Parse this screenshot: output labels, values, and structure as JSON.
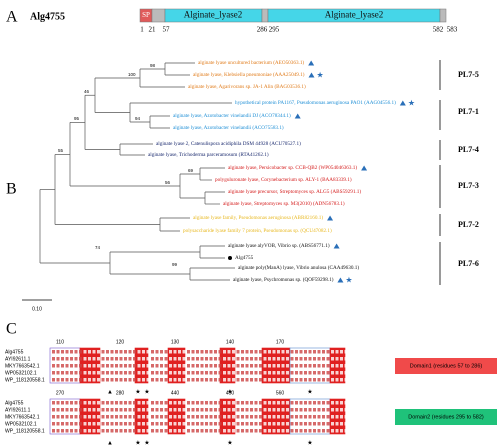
{
  "panel_a": {
    "label": "A",
    "protein": "Alg4755",
    "domains": [
      "SP",
      "Alginate_lyase2",
      "Alginate_lyase2"
    ],
    "positions": [
      "1",
      "21",
      "57",
      "286",
      "295",
      "582",
      "583"
    ]
  },
  "panel_b": {
    "label": "B",
    "leaves": [
      {
        "text": "alginate lyase uncultured bacterium (AEO50363.1)",
        "color": "#e07b1a"
      },
      {
        "text": "alginate lyase, Klebsiella pneumoniae (AAA25049.1)",
        "color": "#e07b1a"
      },
      {
        "text": "alginate lyase, Agarivorans sp. JA-1 Alin (BAG03536.1)",
        "color": "#e07b1a"
      },
      {
        "text": "hypothetical protein PA1167, Pseudomonas aeruginosa PAO1 (AAG04556.1)",
        "color": "#1f8fd6"
      },
      {
        "text": "alginate lyase, Azotobacter vinelandii DJ (ACO78344.1)",
        "color": "#1f8fd6"
      },
      {
        "text": "alginate lyase, Azotobacter vinelandii (ACO75583.1)",
        "color": "#1f8fd6"
      },
      {
        "text": "alginate lyase 2, Catenulispora acidiphila DSM 44928 (ACU70527.1)",
        "color": "#1a2a6e"
      },
      {
        "text": "alginate lyase, Trichoderma parceramosum (RTA41262.1)",
        "color": "#1a2a6e"
      },
      {
        "text": "alginate lyase, Persicobacter sp. CCB-QB2 (WP054046363.1)",
        "color": "#d41a1a"
      },
      {
        "text": "polyguluronate lyase, Corynebacterium sp. ALY-1 (BAA83339.1)",
        "color": "#d41a1a"
      },
      {
        "text": "alginate lyase precursor, Streptomyces sp. ALG5 (ABS59291.1)",
        "color": "#d41a1a"
      },
      {
        "text": "alginate lyase, Streptomyces sp. M3(2010) (ADN56783.1)",
        "color": "#d41a1a"
      },
      {
        "text": "alginate lyase family, Pseudomonas aeruginosa (ABR82160.1)",
        "color": "#e8b820"
      },
      {
        "text": "polysaccharide lyase family 7 protein, Pseudomonas sp. (QCU47082.1)",
        "color": "#e8b820"
      },
      {
        "text": "alginate lyase alyVOB, Vibrio sp. (ABS56771.1)",
        "color": "#111111"
      },
      {
        "text": "Alg4755",
        "color": "#111111"
      },
      {
        "text": "alginate poly(ManA) lyase, Vibrio anulosa (CAA49630.1)",
        "color": "#111111"
      },
      {
        "text": "alginate lyase, Psychromonas sp. (QOF59298.1)",
        "color": "#111111"
      }
    ],
    "bootstrap": [
      "98",
      "100",
      "46",
      "94",
      "95",
      "55",
      "56",
      "69",
      "74",
      "99"
    ],
    "groups": [
      "PL7-5",
      "PL7-1",
      "PL7-4",
      "PL7-3",
      "PL7-2",
      "PL7-6"
    ],
    "scale": "0.10"
  },
  "panel_c": {
    "label": "C",
    "sequences": [
      "Alg4755",
      "AYI92611.1",
      "MKY7663542.1",
      "WP0532102.1",
      "WP_118120558.1"
    ],
    "ruler_top": [
      "110",
      "120",
      "130",
      "140",
      "170"
    ],
    "ruler_bottom": [
      "270",
      "280",
      "440",
      "450",
      "560"
    ],
    "domain1": "Domain1 (residues 57 to 286)",
    "domain2": "Domain2 (residues 295 to 582)"
  }
}
